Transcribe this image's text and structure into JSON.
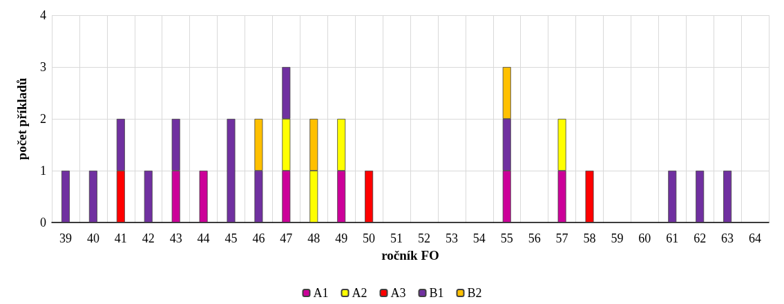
{
  "chart_data": {
    "type": "bar",
    "stacked": true,
    "xlabel": "ročník FO",
    "ylabel": "počet příkladů",
    "categories": [
      "39",
      "40",
      "41",
      "42",
      "43",
      "44",
      "45",
      "46",
      "47",
      "48",
      "49",
      "50",
      "51",
      "52",
      "53",
      "54",
      "55",
      "56",
      "57",
      "58",
      "59",
      "60",
      "61",
      "62",
      "63",
      "64"
    ],
    "series": [
      {
        "name": "A1",
        "color": "#cc0099",
        "values": [
          null,
          null,
          null,
          null,
          1,
          1,
          null,
          null,
          1,
          null,
          1,
          null,
          null,
          null,
          null,
          null,
          1,
          null,
          1,
          null,
          null,
          null,
          null,
          null,
          null,
          null
        ]
      },
      {
        "name": "A2",
        "color": "#ffff00",
        "values": [
          null,
          null,
          null,
          null,
          null,
          null,
          null,
          null,
          1,
          1,
          1,
          null,
          null,
          null,
          null,
          null,
          null,
          null,
          1,
          null,
          null,
          null,
          null,
          null,
          null,
          null
        ]
      },
      {
        "name": "A3",
        "color": "#ff0000",
        "values": [
          null,
          null,
          1,
          null,
          null,
          null,
          null,
          null,
          null,
          null,
          null,
          1,
          null,
          null,
          null,
          null,
          null,
          null,
          null,
          1,
          null,
          null,
          null,
          null,
          null,
          null
        ]
      },
      {
        "name": "B1",
        "color": "#7030a0",
        "values": [
          1,
          1,
          1,
          1,
          1,
          null,
          2,
          1,
          1,
          null,
          null,
          null,
          null,
          null,
          null,
          null,
          1,
          null,
          null,
          null,
          null,
          null,
          1,
          1,
          1,
          null
        ]
      },
      {
        "name": "B2",
        "color": "#ffc000",
        "values": [
          null,
          null,
          null,
          null,
          null,
          null,
          null,
          1,
          null,
          1,
          null,
          null,
          null,
          null,
          null,
          null,
          1,
          null,
          null,
          null,
          null,
          null,
          null,
          null,
          null,
          null
        ]
      }
    ],
    "ylim": [
      0,
      4
    ],
    "yticks": [
      0,
      1,
      2,
      3,
      4
    ],
    "grid": true,
    "legend": "bottom"
  }
}
